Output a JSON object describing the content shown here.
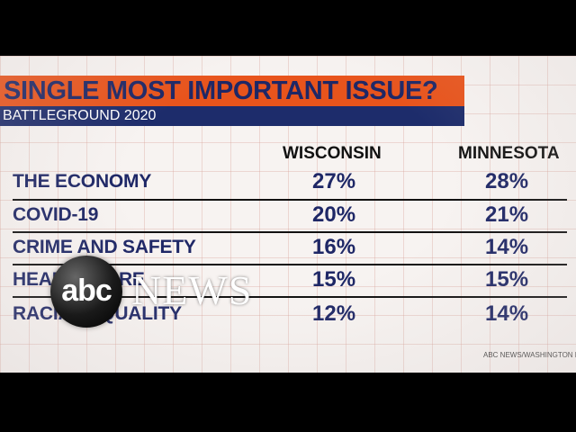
{
  "title": "SINGLE MOST IMPORTANT ISSUE?",
  "subtitle": "BATTLEGROUND 2020",
  "columns": [
    "WISCONSIN",
    "MINNESOTA"
  ],
  "rows": [
    {
      "label": "THE ECONOMY",
      "wisconsin": "27%",
      "minnesota": "28%"
    },
    {
      "label": "COVID-19",
      "wisconsin": "20%",
      "minnesota": "21%"
    },
    {
      "label": "CRIME AND SAFETY",
      "wisconsin": "16%",
      "minnesota": "14%"
    },
    {
      "label": "HEALTH CARE",
      "wisconsin": "15%",
      "minnesota": "15%"
    },
    {
      "label": "RACIAL EQUALITY",
      "wisconsin": "12%",
      "minnesota": "14%"
    }
  ],
  "source": "ABC NEWS/WASHINGTON PO",
  "logo": {
    "abc": "abc",
    "news": "NEWS"
  },
  "colors": {
    "title_bar": "#e8541c",
    "subtitle_bar": "#1d2c6b",
    "text_navy": "#1e2766",
    "background": "#f7f3f1"
  }
}
